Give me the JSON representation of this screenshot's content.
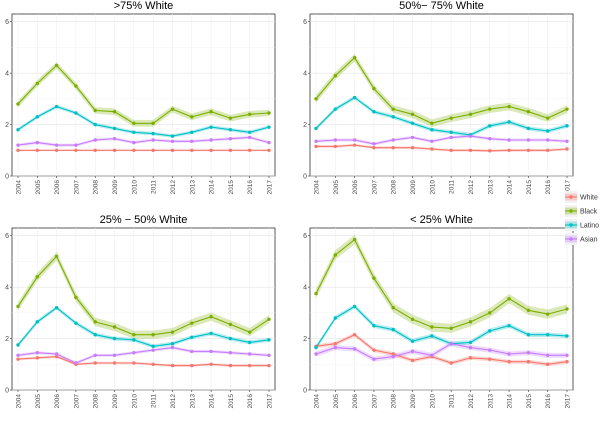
{
  "chart_data": {
    "type": "line",
    "x": [
      2004,
      2005,
      2006,
      2007,
      2008,
      2009,
      2010,
      2011,
      2012,
      2013,
      2014,
      2015,
      2016,
      2017
    ],
    "xtick_labels": [
      "2004",
      "2005",
      "2006",
      "2007",
      "2008",
      "2009",
      "2010",
      "2011",
      "2012",
      "2013",
      "2014",
      "2015",
      "2016",
      "2017"
    ],
    "ylim": [
      0,
      6.3
    ],
    "yticks": [
      0,
      2,
      4,
      6
    ],
    "ytick_labels": [
      "0",
      "2",
      "4",
      "6"
    ],
    "grid": true,
    "legend": {
      "placement": "right",
      "entries": [
        "White",
        "Black",
        "Latino",
        "Asian"
      ]
    },
    "colors": {
      "White": "#f8766d",
      "Black": "#7cae00",
      "Latino": "#00bfc4",
      "Asian": "#c77cff"
    },
    "panels": [
      {
        "title": ">75% White",
        "series": [
          {
            "name": "White",
            "values": [
              1.0,
              1.0,
              1.0,
              1.0,
              1.0,
              1.0,
              1.0,
              1.0,
              1.0,
              1.0,
              1.0,
              1.0,
              1.0,
              1.0
            ],
            "band": 0.03
          },
          {
            "name": "Black",
            "values": [
              2.8,
              3.6,
              4.3,
              3.5,
              2.55,
              2.5,
              2.05,
              2.05,
              2.6,
              2.3,
              2.5,
              2.25,
              2.4,
              2.45
            ],
            "band": 0.13
          },
          {
            "name": "Latino",
            "values": [
              1.8,
              2.3,
              2.7,
              2.45,
              2.0,
              1.85,
              1.7,
              1.65,
              1.55,
              1.7,
              1.9,
              1.8,
              1.7,
              1.9
            ],
            "band": 0.07
          },
          {
            "name": "Asian",
            "values": [
              1.2,
              1.3,
              1.2,
              1.2,
              1.4,
              1.45,
              1.3,
              1.4,
              1.35,
              1.35,
              1.4,
              1.45,
              1.5,
              1.3
            ],
            "band": 0.06
          }
        ]
      },
      {
        "title": "50%− 75% White",
        "series": [
          {
            "name": "White",
            "values": [
              1.15,
              1.15,
              1.2,
              1.1,
              1.1,
              1.1,
              1.05,
              1.0,
              1.0,
              0.98,
              1.0,
              1.0,
              1.0,
              1.05
            ],
            "band": 0.05
          },
          {
            "name": "Black",
            "values": [
              3.0,
              3.9,
              4.6,
              3.4,
              2.6,
              2.4,
              2.05,
              2.25,
              2.4,
              2.6,
              2.7,
              2.5,
              2.25,
              2.6
            ],
            "band": 0.15
          },
          {
            "name": "Latino",
            "values": [
              1.85,
              2.6,
              3.05,
              2.5,
              2.3,
              2.05,
              1.8,
              1.7,
              1.6,
              1.95,
              2.1,
              1.85,
              1.75,
              1.95
            ],
            "band": 0.08
          },
          {
            "name": "Asian",
            "values": [
              1.35,
              1.4,
              1.4,
              1.25,
              1.4,
              1.5,
              1.35,
              1.5,
              1.55,
              1.45,
              1.4,
              1.4,
              1.4,
              1.35
            ],
            "band": 0.06
          }
        ]
      },
      {
        "title": "25% − 50% White",
        "series": [
          {
            "name": "White",
            "values": [
              1.2,
              1.25,
              1.3,
              1.0,
              1.05,
              1.05,
              1.05,
              1.0,
              0.95,
              0.95,
              1.0,
              0.95,
              0.95,
              0.95
            ],
            "band": 0.05
          },
          {
            "name": "Black",
            "values": [
              3.25,
              4.4,
              5.2,
              3.6,
              2.65,
              2.45,
              2.15,
              2.15,
              2.25,
              2.6,
              2.85,
              2.55,
              2.25,
              2.75
            ],
            "band": 0.16
          },
          {
            "name": "Latino",
            "values": [
              1.75,
              2.65,
              3.2,
              2.6,
              2.15,
              2.0,
              1.95,
              1.7,
              1.8,
              2.05,
              2.2,
              2.0,
              1.85,
              1.95
            ],
            "band": 0.08
          },
          {
            "name": "Asian",
            "values": [
              1.35,
              1.45,
              1.4,
              1.05,
              1.35,
              1.35,
              1.45,
              1.55,
              1.65,
              1.5,
              1.5,
              1.45,
              1.4,
              1.35
            ],
            "band": 0.06
          }
        ]
      },
      {
        "title": "< 25% White",
        "series": [
          {
            "name": "White",
            "values": [
              1.7,
              1.8,
              2.15,
              1.55,
              1.4,
              1.15,
              1.3,
              1.05,
              1.25,
              1.2,
              1.1,
              1.1,
              1.0,
              1.1
            ],
            "band": 0.08
          },
          {
            "name": "Black",
            "values": [
              3.75,
              5.25,
              5.85,
              4.35,
              3.2,
              2.75,
              2.45,
              2.4,
              2.65,
              3.0,
              3.55,
              3.1,
              2.95,
              3.15
            ],
            "band": 0.18
          },
          {
            "name": "Latino",
            "values": [
              1.65,
              2.8,
              3.25,
              2.5,
              2.35,
              1.9,
              2.1,
              1.8,
              1.85,
              2.3,
              2.5,
              2.15,
              2.15,
              2.1
            ],
            "band": 0.09
          },
          {
            "name": "Asian",
            "values": [
              1.4,
              1.65,
              1.6,
              1.2,
              1.3,
              1.5,
              1.35,
              1.8,
              1.65,
              1.55,
              1.4,
              1.45,
              1.35,
              1.35
            ],
            "band": 0.1
          }
        ]
      }
    ]
  }
}
